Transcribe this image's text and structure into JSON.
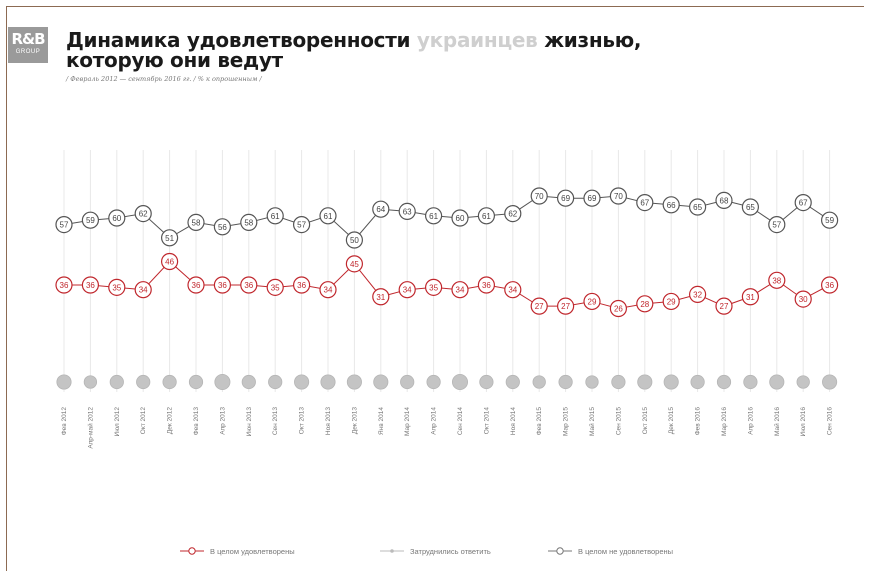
{
  "logo": {
    "big": "R&B",
    "small": "GROUP"
  },
  "title": {
    "line1_a": "Динамика удовлетворенности",
    "line1_b": "украинцев",
    "line1_c": "жизнью,",
    "line2": "которую они ведут"
  },
  "subtitle": "/ Февраль 2012 — сентябрь 2016 гг. / % к опрошенным /",
  "chart_data": {
    "type": "line",
    "categories": [
      "Фев 2012",
      "Апр-май 2012",
      "Июл 2012",
      "Окт 2012",
      "Дек 2012",
      "Фев 2013",
      "Апр 2013",
      "Июн 2013",
      "Сен 2013",
      "Окт 2013",
      "Ноя 2013",
      "Дек 2013",
      "Янв 2014",
      "Мар 2014",
      "Апр 2014",
      "Сен 2014",
      "Окт 2014",
      "Ноя 2014",
      "Фев 2015",
      "Мар 2015",
      "Май 2015",
      "Сен 2015",
      "Окт 2015",
      "Дек 2015",
      "Фев 2016",
      "Мар 2016",
      "Апр 2016",
      "Май 2016",
      "Июл 2016",
      "Сен 2016"
    ],
    "series": [
      {
        "name": "В целом удовлетворены",
        "color": "#c0272d",
        "show_labels": true,
        "values": [
          36,
          36,
          35,
          34,
          46,
          36,
          36,
          36,
          35,
          36,
          34,
          45,
          31,
          34,
          35,
          34,
          36,
          34,
          27,
          27,
          29,
          26,
          28,
          29,
          32,
          27,
          31,
          38,
          30,
          36
        ]
      },
      {
        "name": "Затруднились ответить",
        "color": "#bdbdbd",
        "show_labels": false,
        "values": [
          7,
          5,
          6,
          6,
          6,
          6,
          8,
          6,
          6,
          7,
          7,
          7,
          7,
          6,
          6,
          8,
          6,
          6,
          5,
          6,
          5,
          6,
          7,
          7,
          6,
          6,
          6,
          7,
          5,
          7
        ]
      },
      {
        "name": "В целом не удовлетворены",
        "color": "#555555",
        "show_labels": true,
        "values": [
          57,
          59,
          60,
          62,
          51,
          58,
          56,
          58,
          61,
          57,
          61,
          50,
          64,
          63,
          61,
          60,
          61,
          62,
          70,
          69,
          69,
          70,
          67,
          66,
          65,
          68,
          65,
          57,
          67,
          59
        ]
      }
    ],
    "legend_position": "bottom"
  }
}
